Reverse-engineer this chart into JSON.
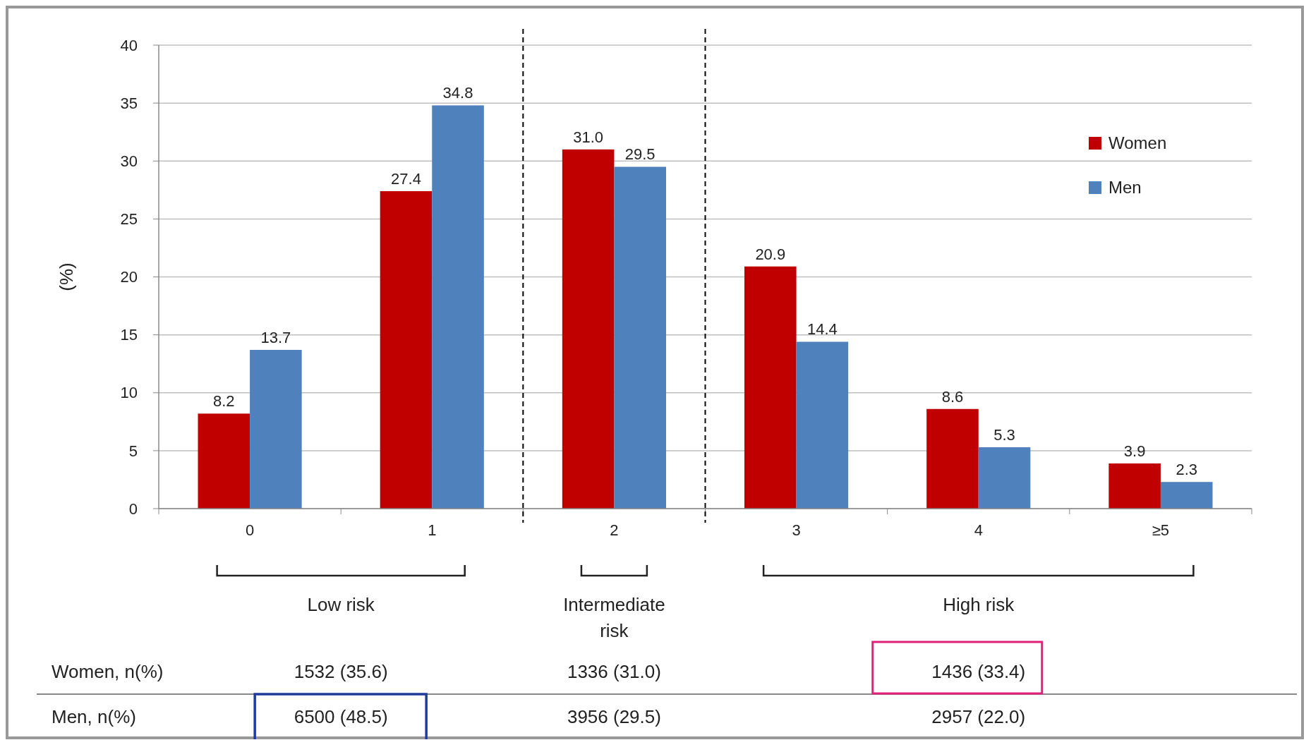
{
  "chart_data": {
    "type": "bar",
    "ylabel": "(%)",
    "categories": [
      "0",
      "1",
      "2",
      "3",
      "4",
      "≥5"
    ],
    "series": [
      {
        "name": "Women",
        "color": "#c00000",
        "values": [
          8.2,
          27.4,
          31.0,
          20.9,
          8.6,
          3.9
        ],
        "value_labels": [
          "8.2",
          "27.4",
          "31.0",
          "20.9",
          "8.6",
          "3.9"
        ]
      },
      {
        "name": "Men",
        "color": "#4f81bd",
        "values": [
          13.7,
          34.8,
          29.5,
          14.4,
          5.3,
          2.3
        ],
        "value_labels": [
          "13.7",
          "34.8",
          "29.5",
          "14.4",
          "5.3",
          "2.3"
        ]
      }
    ],
    "ylim": [
      0,
      40
    ],
    "yticks": [
      0,
      5,
      10,
      15,
      20,
      25,
      30,
      35,
      40
    ],
    "grid": "y",
    "legend": "top right",
    "annotations": [
      "Low risk",
      "Intermediate risk",
      "High risk",
      "Women, n(%)",
      "1532 (35.6)",
      "1336 (31.0)",
      "1436 (33.4)",
      "Men, n(%)",
      "6500 (48.5)",
      "3956 (29.5)",
      "2957 (22.0)"
    ]
  }
}
